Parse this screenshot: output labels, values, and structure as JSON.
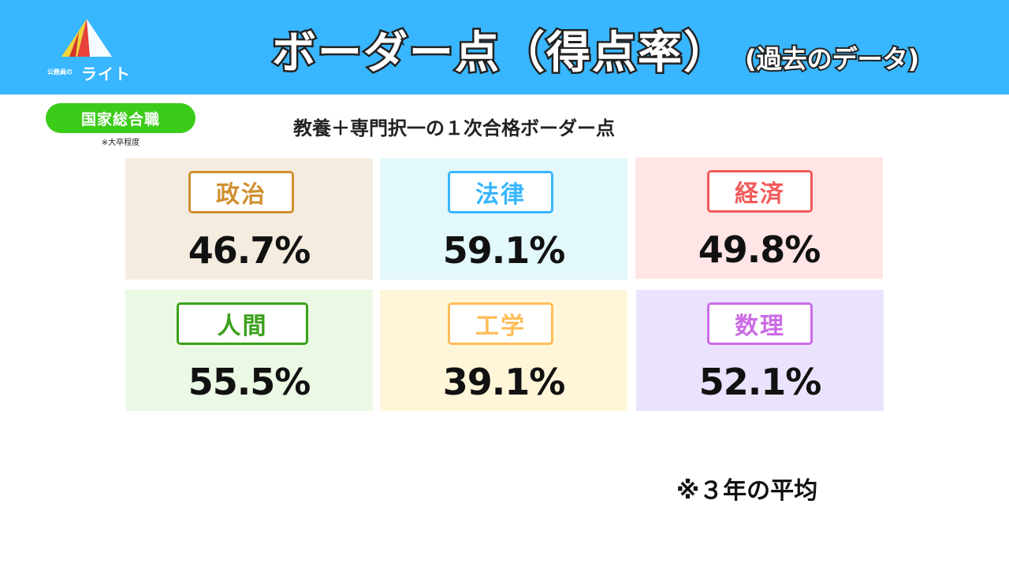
{
  "header": {
    "brand_small": "公務員の",
    "brand_name": "ライト",
    "title": "ボーダー点（得点率）",
    "subtitle": "(過去のデータ)"
  },
  "badge": {
    "label": "国家総合職",
    "note": "※大卒程度"
  },
  "heading": "教養＋専門択一の１次合格ボーダー点",
  "cards": [
    {
      "subject": "政治",
      "value": "46.7%",
      "bg": "#f5ece0",
      "accent": "#d09030"
    },
    {
      "subject": "法律",
      "value": "59.1%",
      "bg": "#e2f8fb",
      "accent": "#38b6ff"
    },
    {
      "subject": "経済",
      "value": "49.8%",
      "bg": "#ffe5e5",
      "accent": "#f25a5a"
    },
    {
      "subject": "人間",
      "value": "55.5%",
      "bg": "#eaf8e4",
      "accent": "#3aa01c"
    },
    {
      "subject": "工学",
      "value": "39.1%",
      "bg": "#fff6d9",
      "accent": "#ffbd59"
    },
    {
      "subject": "数理",
      "value": "52.1%",
      "bg": "#ebe3fd",
      "accent": "#cb6ce6"
    }
  ],
  "footnote": "※３年の平均"
}
